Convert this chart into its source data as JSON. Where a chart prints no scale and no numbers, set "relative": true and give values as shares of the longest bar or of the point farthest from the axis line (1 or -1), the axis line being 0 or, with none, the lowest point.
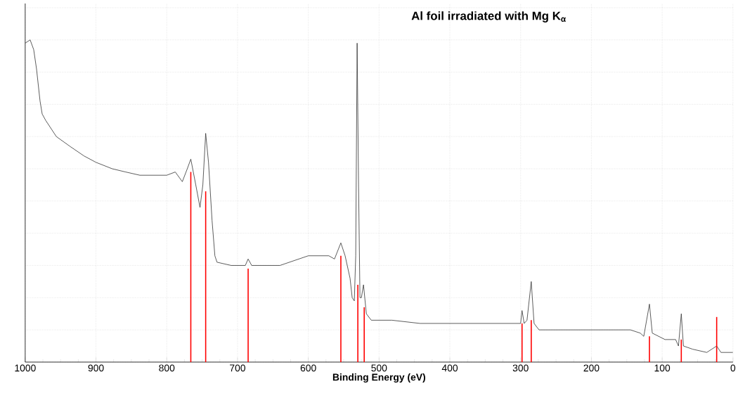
{
  "chart_data": {
    "type": "line",
    "title": "Al foil irradiated with Mg K$_{α}$",
    "xlabel": "Binding Energy (eV)",
    "xlim": [
      1000,
      0
    ],
    "xticks": [
      1000,
      900,
      800,
      700,
      600,
      500,
      400,
      300,
      200,
      100,
      0
    ],
    "relative": true,
    "grid": true,
    "series": [
      {
        "color": "#333333",
        "x": [
          1000,
          993,
          988,
          984,
          979,
          976,
          971,
          956,
          937,
          917,
          900,
          877,
          858,
          838,
          800,
          788,
          778,
          771,
          766,
          759,
          753,
          749,
          745,
          741,
          736,
          732,
          729,
          709,
          689,
          685,
          680,
          640,
          600,
          597,
          571,
          563,
          554,
          548,
          541,
          538,
          535,
          533,
          531,
          529,
          527,
          525,
          522,
          518,
          511,
          482,
          442,
          304,
          300,
          298,
          295,
          291,
          285,
          281,
          274,
          244,
          145,
          131,
          126,
          118,
          114,
          96,
          81,
          77,
          73,
          70,
          57,
          37,
          23,
          17,
          0
        ],
        "values": [
          0.99,
          1.0,
          0.97,
          0.91,
          0.81,
          0.77,
          0.75,
          0.7,
          0.67,
          0.64,
          0.62,
          0.6,
          0.59,
          0.58,
          0.58,
          0.59,
          0.56,
          0.6,
          0.63,
          0.55,
          0.48,
          0.55,
          0.71,
          0.62,
          0.44,
          0.33,
          0.31,
          0.3,
          0.3,
          0.32,
          0.3,
          0.3,
          0.33,
          0.33,
          0.33,
          0.32,
          0.37,
          0.33,
          0.26,
          0.2,
          0.19,
          0.33,
          0.99,
          0.55,
          0.2,
          0.2,
          0.24,
          0.15,
          0.13,
          0.13,
          0.12,
          0.12,
          0.12,
          0.16,
          0.12,
          0.13,
          0.25,
          0.12,
          0.1,
          0.1,
          0.1,
          0.09,
          0.08,
          0.18,
          0.09,
          0.07,
          0.07,
          0.05,
          0.15,
          0.05,
          0.04,
          0.03,
          0.05,
          0.03,
          0.03
        ]
      },
      {
        "type": "bar",
        "color": "#ff0000",
        "x": [
          766,
          745,
          685,
          554,
          530,
          521,
          298,
          285,
          118,
          73,
          23
        ],
        "values": [
          0.59,
          0.53,
          0.29,
          0.33,
          0.24,
          0.17,
          0.12,
          0.13,
          0.08,
          0.07,
          0.14
        ]
      }
    ]
  }
}
